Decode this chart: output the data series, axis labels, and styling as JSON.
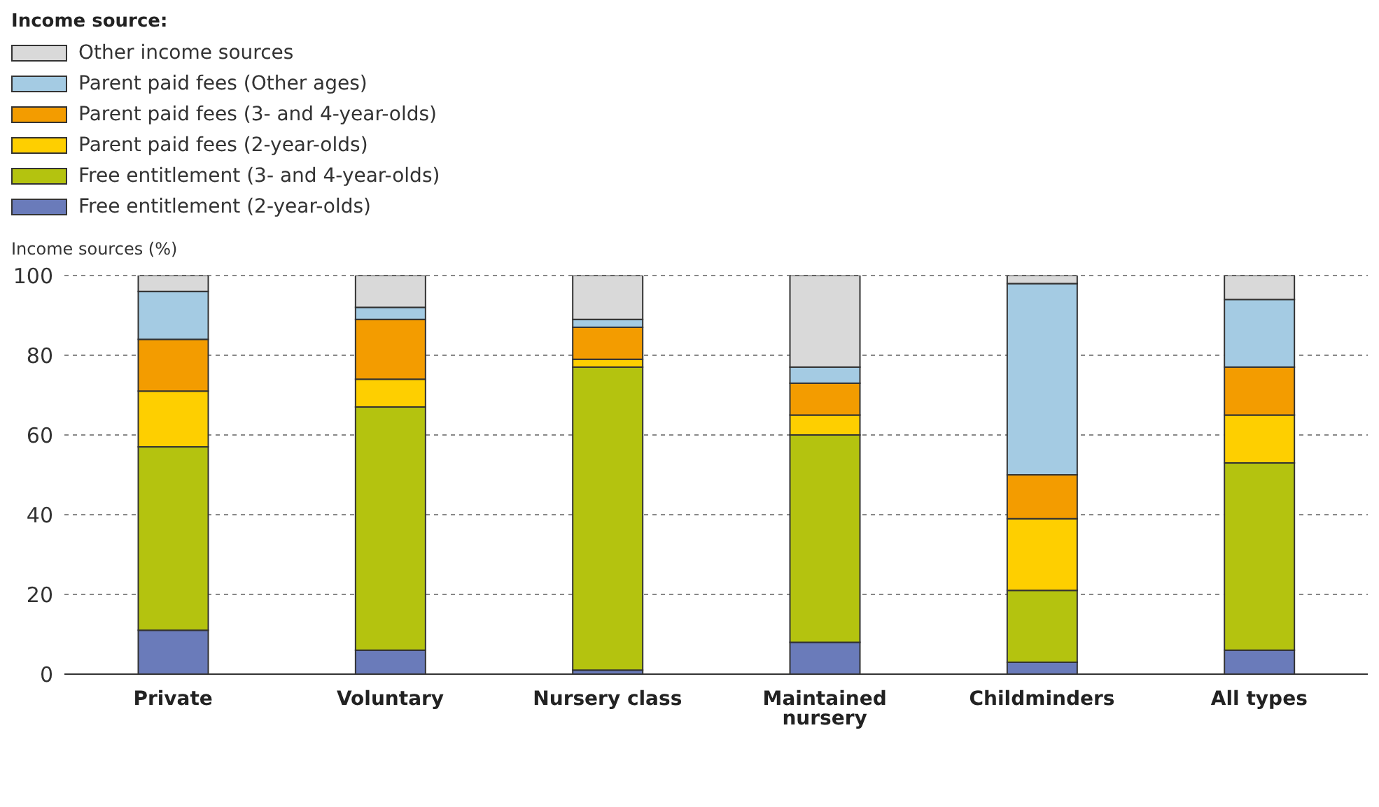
{
  "chart_data": {
    "type": "bar",
    "stacked": true,
    "legend_title": "Income source:",
    "ylabel": "Income sources (%)",
    "categories": [
      "Private",
      "Voluntary",
      "Nursery class",
      "Maintained nursery",
      "Childminders",
      "All types"
    ],
    "series": [
      {
        "name": "Free entitlement (2-year-olds)",
        "color": "#6a7bba",
        "values": [
          11,
          6,
          1,
          8,
          3,
          6
        ]
      },
      {
        "name": "Free entitlement (3- and 4-year-olds)",
        "color": "#b4c30f",
        "values": [
          46,
          61,
          76,
          52,
          18,
          47
        ]
      },
      {
        "name": "Parent paid fees (2-year-olds)",
        "color": "#fecf00",
        "values": [
          14,
          7,
          2,
          5,
          18,
          12
        ]
      },
      {
        "name": "Parent paid fees (3- and 4-year-olds)",
        "color": "#f39c00",
        "values": [
          13,
          15,
          8,
          8,
          11,
          12
        ]
      },
      {
        "name": "Parent paid fees (Other ages)",
        "color": "#a4cbe3",
        "values": [
          12,
          3,
          2,
          4,
          48,
          17
        ]
      },
      {
        "name": "Other income sources",
        "color": "#d9d9d9",
        "values": [
          4,
          8,
          11,
          23,
          2,
          6
        ]
      }
    ],
    "ylim": [
      0,
      100
    ],
    "yticks": [
      0,
      20,
      40,
      60,
      80,
      100
    ],
    "grid": "y",
    "legend": "top left"
  }
}
